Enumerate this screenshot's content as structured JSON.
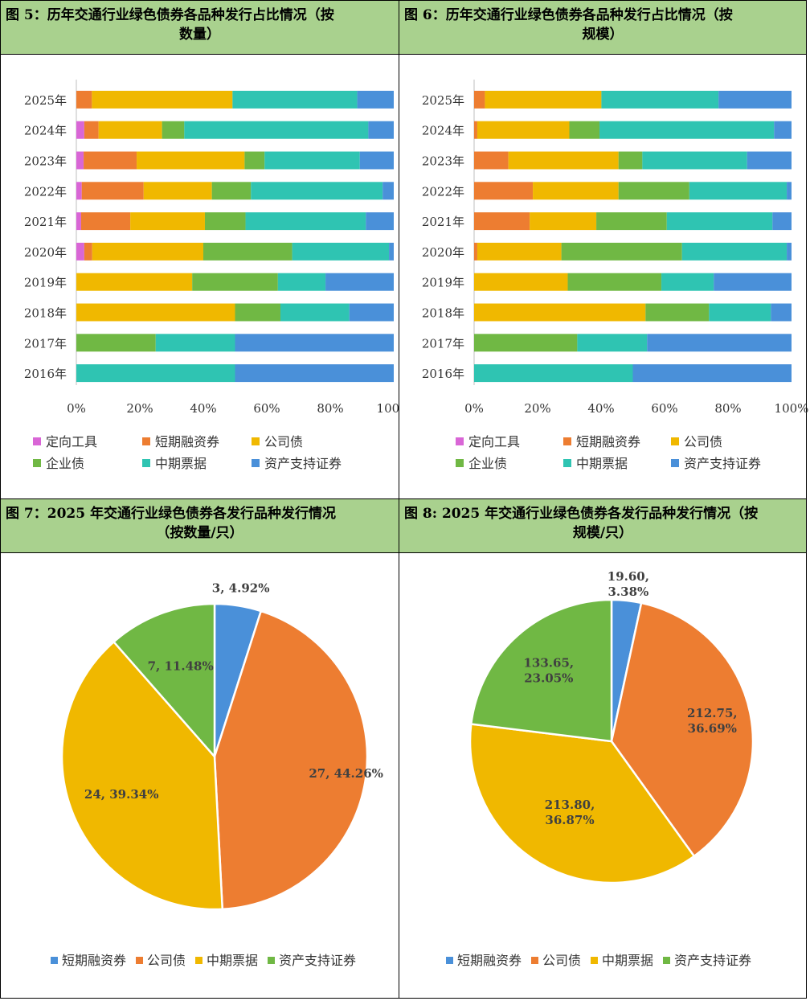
{
  "colors": {
    "header_bg": "#a9d18e",
    "定向工具": "#d966d6",
    "短期融资券": "#ed7d31",
    "公司债": "#f0b800",
    "企业债": "#70b844",
    "中期票据": "#2fc4b2",
    "资产支持证券": "#4a90d9",
    "pie_blue": "#4a90d9",
    "pie_orange": "#ed7d31",
    "pie_yellow": "#f0b800",
    "pie_green": "#70b844"
  },
  "panels": {
    "fig5": {
      "title_line1": "图 5：历年交通行业绿色债券各品种发行占比情况（按",
      "title_line2": "数量）"
    },
    "fig6": {
      "title_line1": "图 6：历年交通行业绿色债券各品种发行占比情况（按",
      "title_line2": "规模）"
    },
    "fig7": {
      "title_line1": "图 7：2025 年交通行业绿色债券各发行品种发行情况",
      "title_line2": "（按数量/只）"
    },
    "fig8": {
      "title_line1": "图 8: 2025 年交通行业绿色债券各发行品种发行情况（按",
      "title_line2": "规模/只）"
    }
  },
  "chart_data": [
    {
      "id": "fig5",
      "type": "bar",
      "orientation": "horizontal",
      "stacked": "percent",
      "categories": [
        "2025年",
        "2024年",
        "2023年",
        "2022年",
        "2021年",
        "2020年",
        "2019年",
        "2018年",
        "2017年",
        "2016年"
      ],
      "series": [
        {
          "name": "定向工具",
          "values": [
            0,
            2.5,
            2.3,
            1.7,
            1.5,
            2.5,
            0,
            0,
            0,
            0
          ]
        },
        {
          "name": "短期融资券",
          "values": [
            4.9,
            4.5,
            16.7,
            19.5,
            15.5,
            2.5,
            0,
            0,
            0,
            0
          ]
        },
        {
          "name": "公司债",
          "values": [
            44.3,
            20.0,
            34.0,
            21.5,
            23.5,
            35.0,
            36.5,
            50.0,
            0,
            0
          ]
        },
        {
          "name": "企业债",
          "values": [
            0,
            7.0,
            6.3,
            12.3,
            12.8,
            28.0,
            27.0,
            14.3,
            25.0,
            0
          ]
        },
        {
          "name": "中期票据",
          "values": [
            39.3,
            58.0,
            30.0,
            41.5,
            37.9,
            30.5,
            15.0,
            21.7,
            25.0,
            50.0
          ]
        },
        {
          "name": "资产支持证券",
          "values": [
            11.5,
            8.0,
            10.7,
            3.5,
            8.8,
            1.5,
            21.5,
            14.0,
            50.0,
            50.0
          ]
        }
      ],
      "xlim": [
        0,
        100
      ],
      "ticks": [
        "0%",
        "20%",
        "40%",
        "60%",
        "80%",
        "100%"
      ],
      "legend": [
        "定向工具",
        "短期融资券",
        "公司债",
        "企业债",
        "中期票据",
        "资产支持证券"
      ],
      "legend_position": "bottom"
    },
    {
      "id": "fig6",
      "type": "bar",
      "orientation": "horizontal",
      "stacked": "percent",
      "categories": [
        "2025年",
        "2024年",
        "2023年",
        "2022年",
        "2021年",
        "2020年",
        "2019年",
        "2018年",
        "2017年",
        "2016年"
      ],
      "series": [
        {
          "name": "定向工具",
          "values": [
            0,
            0,
            0,
            0,
            0,
            0,
            0,
            0,
            0,
            0
          ]
        },
        {
          "name": "短期融资券",
          "values": [
            3.4,
            1.0,
            10.8,
            18.5,
            17.5,
            1.0,
            0,
            0,
            0,
            0
          ]
        },
        {
          "name": "公司债",
          "values": [
            36.7,
            29.0,
            34.7,
            27.0,
            21.0,
            26.5,
            29.5,
            54.0,
            0,
            0
          ]
        },
        {
          "name": "企业债",
          "values": [
            0,
            9.5,
            7.5,
            22.3,
            22.2,
            38.0,
            29.5,
            20.0,
            32.5,
            0
          ]
        },
        {
          "name": "中期票据",
          "values": [
            36.9,
            55.0,
            33.0,
            30.7,
            33.3,
            33.0,
            16.5,
            19.5,
            22.0,
            50.0
          ]
        },
        {
          "name": "资产支持证券",
          "values": [
            23.0,
            5.5,
            14.0,
            1.5,
            6.0,
            1.5,
            24.5,
            6.5,
            45.5,
            50.0
          ]
        }
      ],
      "xlim": [
        0,
        100
      ],
      "ticks": [
        "0%",
        "20%",
        "40%",
        "60%",
        "80%",
        "100%"
      ],
      "legend": [
        "定向工具",
        "短期融资券",
        "公司债",
        "企业债",
        "中期票据",
        "资产支持证券"
      ],
      "legend_position": "bottom"
    },
    {
      "id": "fig7",
      "type": "pie",
      "slices": [
        {
          "name": "短期融资券",
          "value": 3,
          "label": "3, 4.92%",
          "color_key": "pie_blue"
        },
        {
          "name": "公司债",
          "value": 27,
          "label": "27, 44.26%",
          "color_key": "pie_orange"
        },
        {
          "name": "中期票据",
          "value": 24,
          "label": "24, 39.34%",
          "color_key": "pie_yellow"
        },
        {
          "name": "资产支持证券",
          "value": 7,
          "label": "7, 11.48%",
          "color_key": "pie_green"
        }
      ],
      "legend": [
        "短期融资券",
        "公司债",
        "中期票据",
        "资产支持证券"
      ],
      "legend_position": "bottom"
    },
    {
      "id": "fig8",
      "type": "pie",
      "slices": [
        {
          "name": "短期融资券",
          "value": 19.6,
          "label": [
            "19.60,",
            "3.38%"
          ],
          "color_key": "pie_blue"
        },
        {
          "name": "公司债",
          "value": 212.75,
          "label": [
            "212.75,",
            "36.69%"
          ],
          "color_key": "pie_orange"
        },
        {
          "name": "中期票据",
          "value": 213.8,
          "label": [
            "213.80,",
            "36.87%"
          ],
          "color_key": "pie_yellow"
        },
        {
          "name": "资产支持证券",
          "value": 133.65,
          "label": [
            "133.65,",
            "23.05%"
          ],
          "color_key": "pie_green"
        }
      ],
      "legend": [
        "短期融资券",
        "公司债",
        "中期票据",
        "资产支持证券"
      ],
      "legend_position": "bottom"
    }
  ]
}
